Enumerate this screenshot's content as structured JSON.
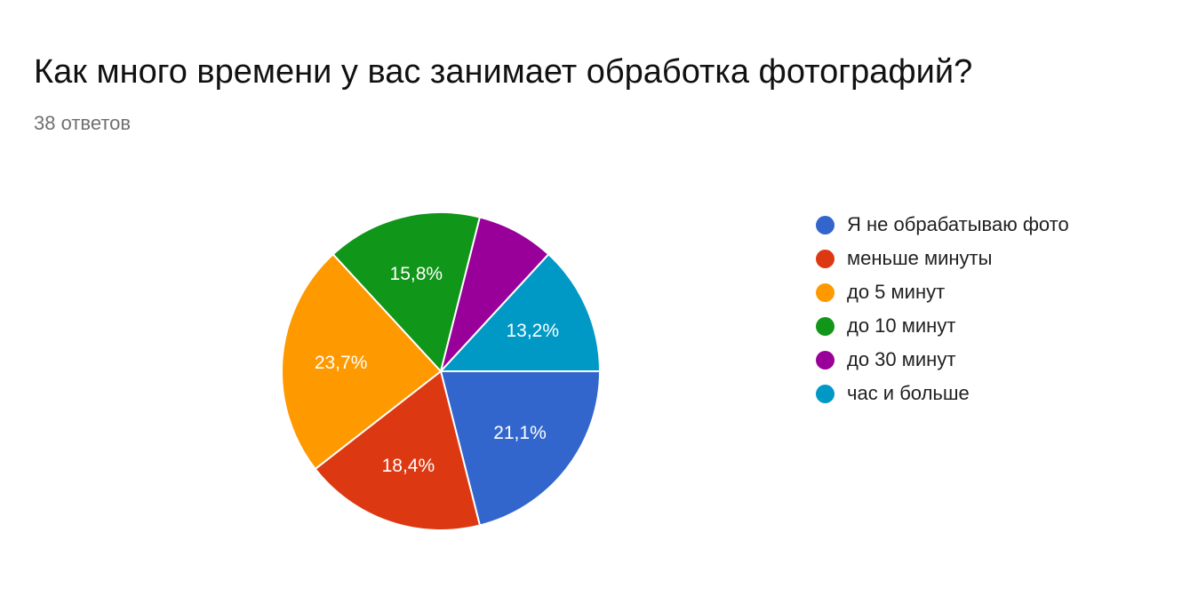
{
  "header": {
    "title": "Как много времени у вас занимает обработка фотографий?",
    "subtitle": "38 ответов"
  },
  "chart_data": {
    "type": "pie",
    "title": "Как много времени у вас занимает обработка фотографий?",
    "total_responses": 38,
    "legend_position": "right",
    "slices": [
      {
        "name": "Я не обрабатываю фото",
        "value": 8,
        "percent_label": "21,1%",
        "color": "#3366cc"
      },
      {
        "name": "меньше минуты",
        "value": 7,
        "percent_label": "18,4%",
        "color": "#dc3912"
      },
      {
        "name": "до 5 минут",
        "value": 9,
        "percent_label": "23,7%",
        "color": "#ff9900"
      },
      {
        "name": "до 10 минут",
        "value": 6,
        "percent_label": "15,8%",
        "color": "#109618"
      },
      {
        "name": "до 30 минут",
        "value": 3,
        "percent_label": "",
        "color": "#990099"
      },
      {
        "name": "час и больше",
        "value": 5,
        "percent_label": "13,2%",
        "color": "#0099c6"
      }
    ]
  }
}
